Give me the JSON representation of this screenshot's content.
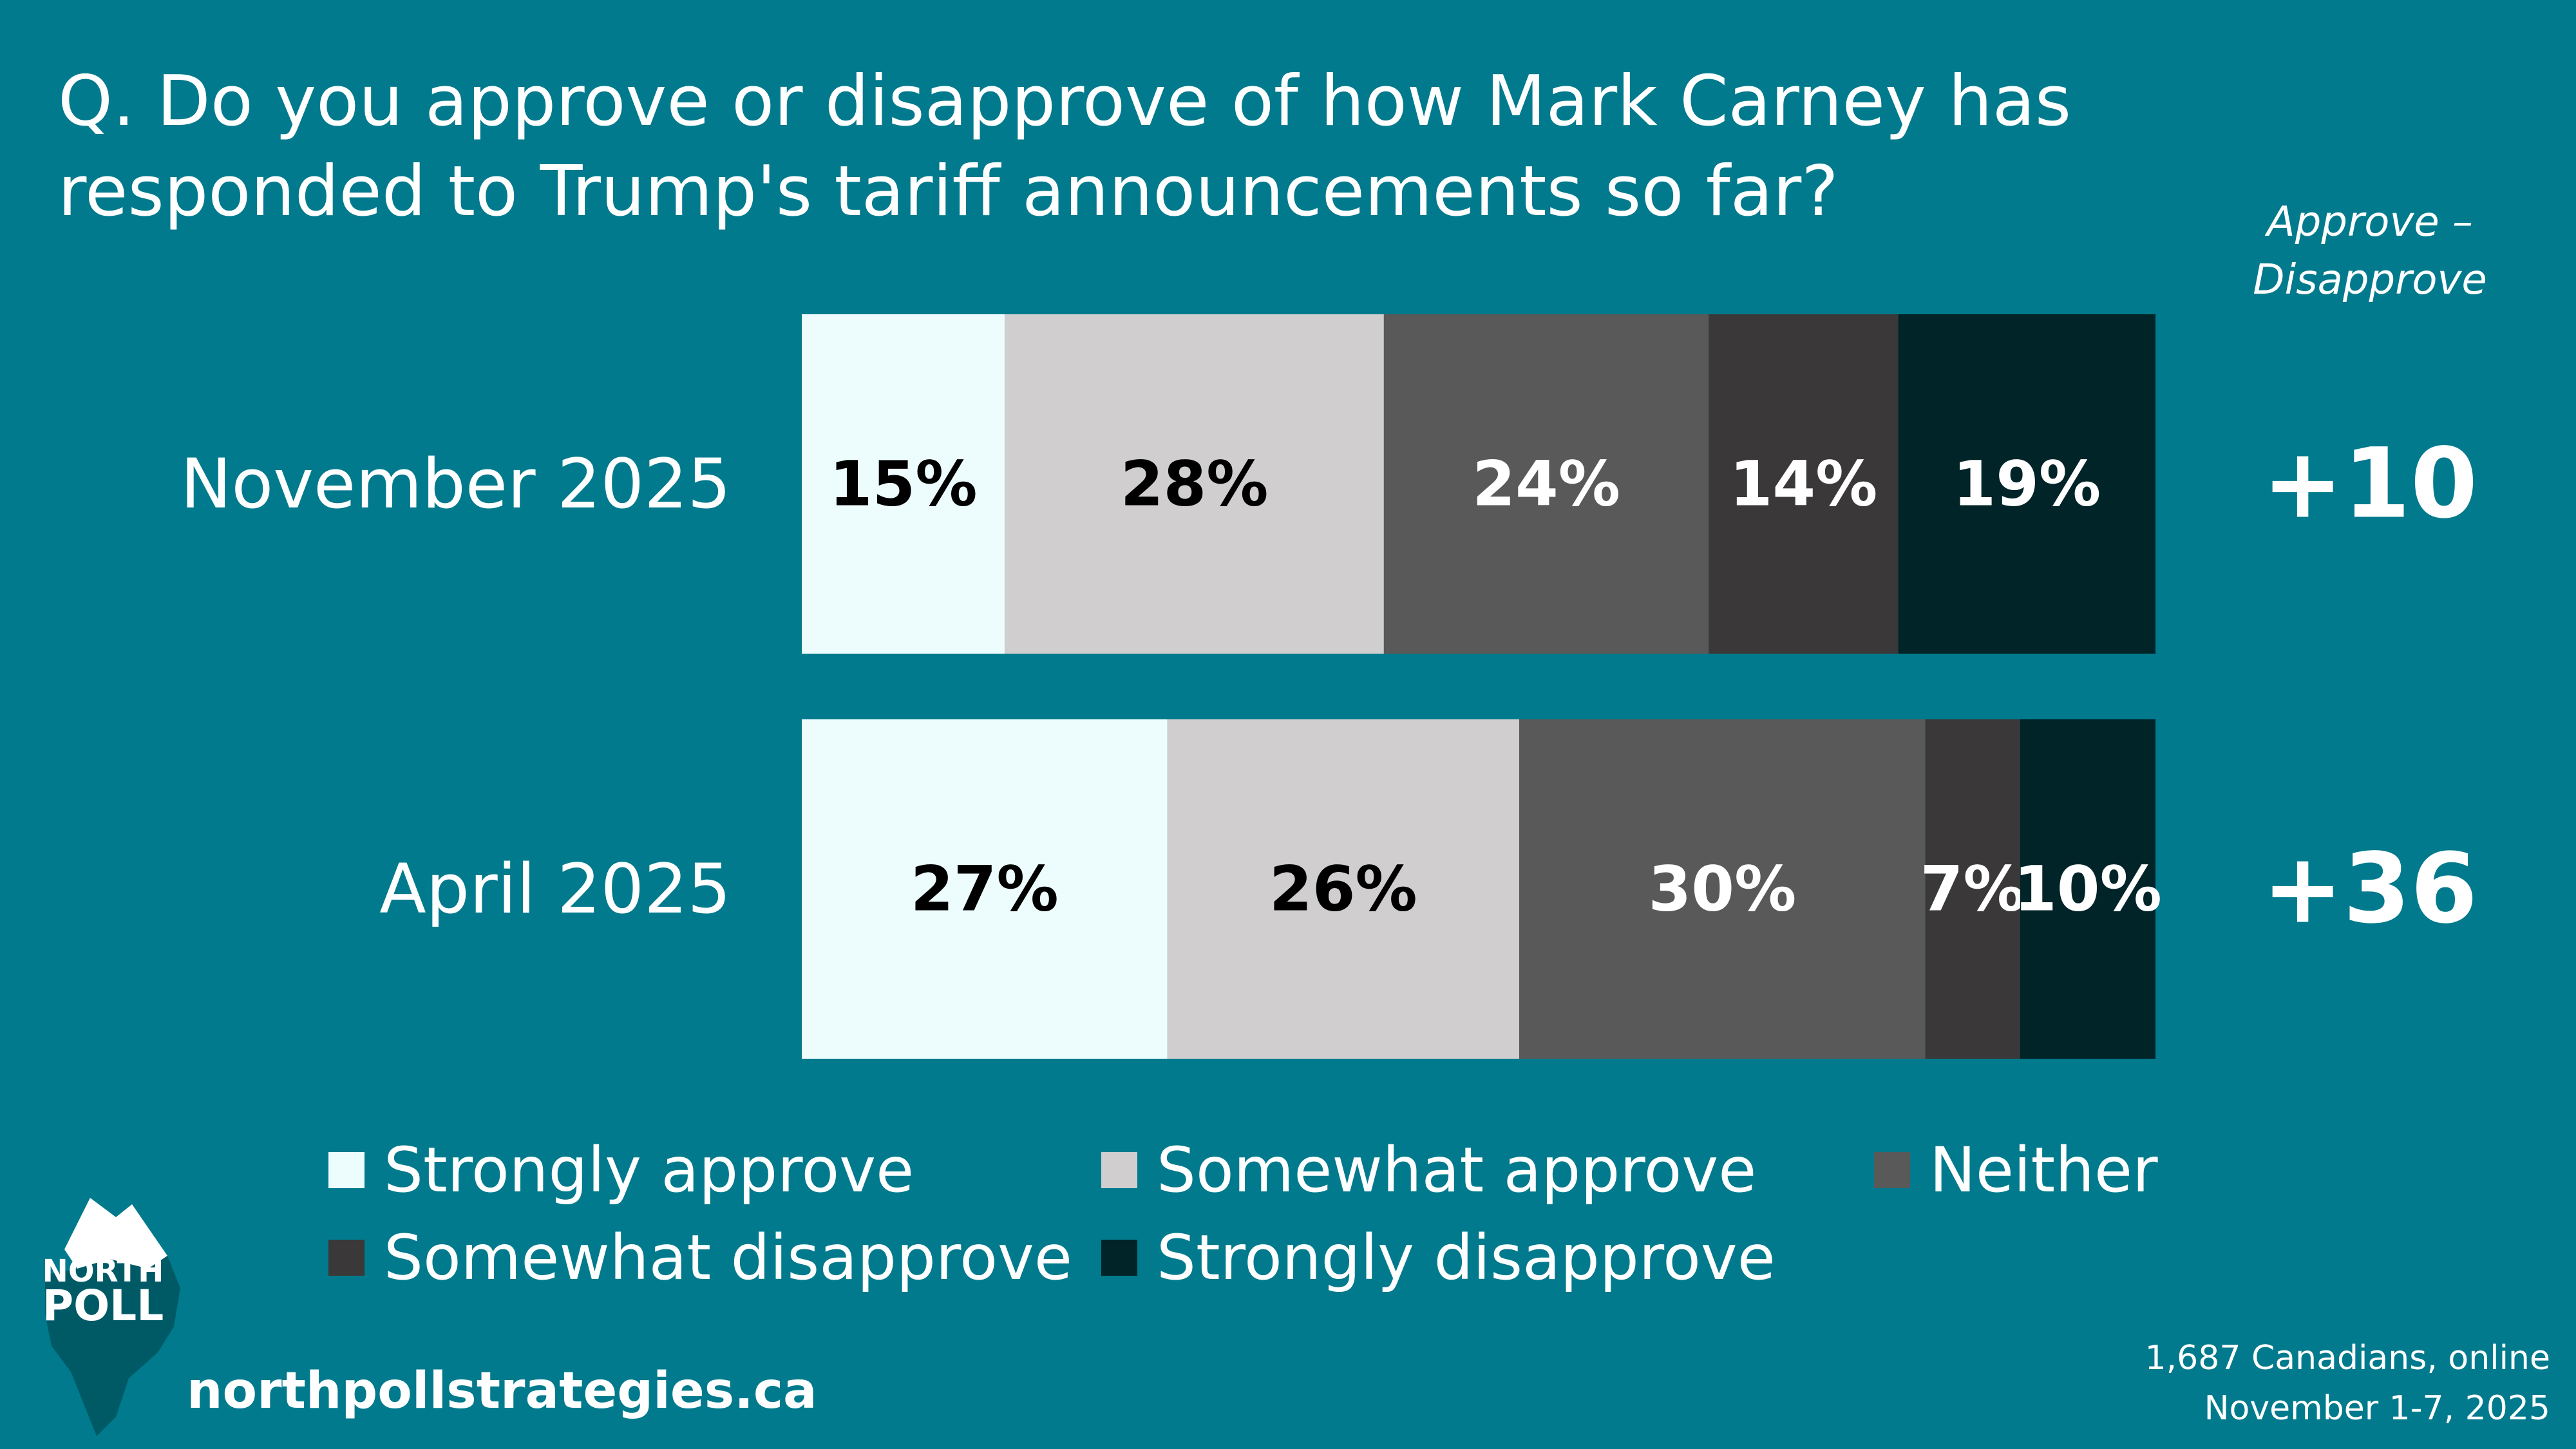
{
  "question": "Q. Do you approve or disapprove of how Mark Carney has responded to Trump's tariff announcements so far?",
  "diff_header": "Approve – Disapprove",
  "chart_data": {
    "type": "bar",
    "orientation": "horizontal",
    "stacked": true,
    "normalized": true,
    "title": "Q. Do you approve or disapprove of how Mark Carney has responded to Trump's tariff announcements so far?",
    "categories": [
      "November 2025",
      "April 2025"
    ],
    "series": [
      {
        "name": "Strongly approve",
        "color": "#EDFDFE",
        "label_color": "#000000",
        "values": [
          15,
          27
        ]
      },
      {
        "name": "Somewhat approve",
        "color": "#D0CECE",
        "label_color": "#000000",
        "values": [
          28,
          26
        ]
      },
      {
        "name": "Neither",
        "color": "#595959",
        "label_color": "#ffffff",
        "values": [
          24,
          30
        ]
      },
      {
        "name": "Somewhat disapprove",
        "color": "#3A3838",
        "label_color": "#ffffff",
        "values": [
          14,
          7
        ]
      },
      {
        "name": "Strongly disapprove",
        "color": "#002428",
        "label_color": "#ffffff",
        "values": [
          19,
          10
        ]
      }
    ],
    "value_suffix": "%",
    "net_label": "Approve – Disapprove",
    "net_values": [
      "+10",
      "+36"
    ],
    "legend_position": "bottom"
  },
  "legend": [
    {
      "label": "Strongly approve",
      "color": "#EDFDFE"
    },
    {
      "label": "Somewhat approve",
      "color": "#D0CECE"
    },
    {
      "label": "Neither",
      "color": "#595959"
    },
    {
      "label": "Somewhat disapprove",
      "color": "#3A3838"
    },
    {
      "label": "Strongly disapprove",
      "color": "#002428"
    }
  ],
  "logo": {
    "line1": "NORTH",
    "line2": "POLL"
  },
  "website": "northpollstrategies.ca",
  "source": {
    "line1": "1,687 Canadians, online",
    "line2": "November 1-7, 2025"
  },
  "colors": {
    "background": "#007A8C"
  }
}
